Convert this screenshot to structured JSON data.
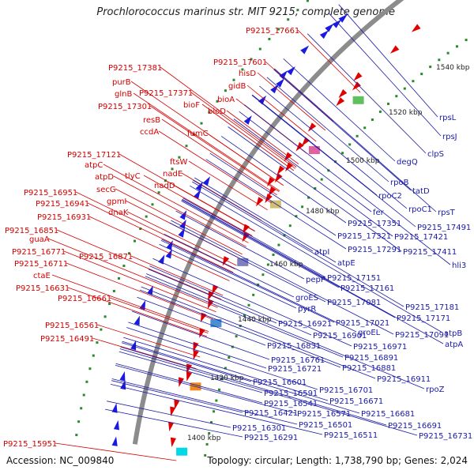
{
  "title": "Prochlorococcus marinus str. MIT 9215, complete genome",
  "footer": {
    "accession": "Accession: NC_009840",
    "topology": "Topology: circular; Length: 1,738,790 bp; Genes: 2,024"
  },
  "colors": {
    "forward": "#e00000",
    "reverse": "#1a1ae0",
    "backbone": "#8c8c8c",
    "red_label": "#d40000",
    "blue_label": "#1a1aa8",
    "gc_dots": "#2a8a2a"
  },
  "kbp_ticks": [
    "1540 kbp",
    "1520 kbp",
    "1500 kbp",
    "1480 kbp",
    "1460 kbp",
    "1440 kbp",
    "1420 kbp",
    "1400 kbp"
  ],
  "red_labels": [
    "P9215_17661",
    "P9215_17601",
    "hisD",
    "P9215_17381",
    "gidB",
    "purB",
    "P9215_17371",
    "bioA",
    "glnB",
    "bioF",
    "bioD",
    "P9215_17301",
    "resB",
    "ccdA",
    "fumC",
    "P9215_17121",
    "ftsW",
    "atpC",
    "atpD",
    "tlyC",
    "nadE",
    "secG",
    "nadD",
    "P9215_16951",
    "gpmI",
    "P9215_16941",
    "dnaK",
    "P9215_16931",
    "P9215_16851",
    "guaA",
    "P9215_16771",
    "P9215_16871",
    "P9215_16711",
    "ctaE",
    "P9215_16631",
    "P9215_16661",
    "P9215_16561",
    "P9215_16491",
    "P9215_15951"
  ],
  "blue_labels": [
    "1540 kbp",
    "rpsL",
    "rpsJ",
    "clpS",
    "degQ",
    "tatD",
    "rpoB",
    "rpoC2",
    "rpoC1",
    "rpsT",
    "fer",
    "P9215_17351",
    "P9215_17491",
    "P9215_17321",
    "P9215_17421",
    "P9215_17291",
    "P9215_17411",
    "atpI",
    "hli3",
    "atpE",
    "P9215_17151",
    "pepP",
    "P9215_17161",
    "groES",
    "P9215_17081",
    "P9215_17181",
    "pyrR",
    "P9215_17171",
    "groEL",
    "P9215_17021",
    "P9215_16921",
    "P9215_17091",
    "atpB",
    "P9215_16901",
    "atpA",
    "P9215_16831",
    "P9215_16971",
    "P9215_16891",
    "P9215_16761",
    "P9215_16881",
    "P9215_16721",
    "P9215_16911",
    "P9215_16601",
    "P9215_16701",
    "rpoZ",
    "P9215_16591",
    "P9215_16671",
    "P9215_16541",
    "P9215_16421",
    "P9215_16571",
    "P9215_16681",
    "P9215_16501",
    "P9215_16301",
    "P9215_16691",
    "P9215_16291",
    "P9215_16511",
    "P9215_16731"
  ]
}
